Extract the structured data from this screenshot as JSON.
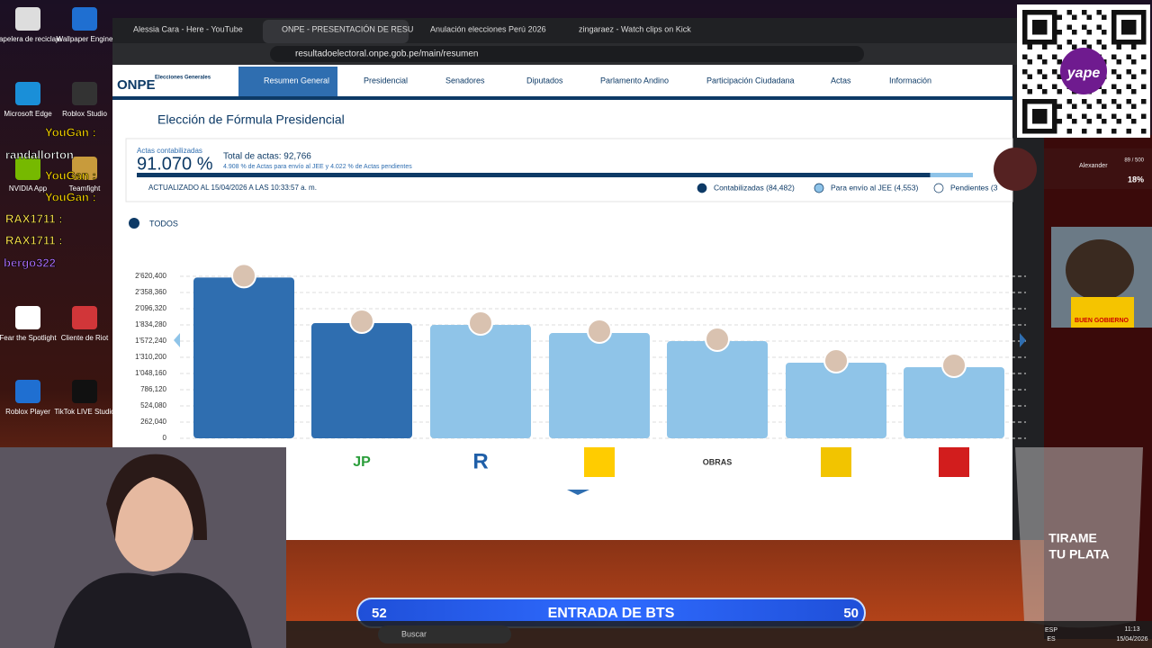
{
  "desktop_icons": [
    "Papelera de reciclaje",
    "Wallpaper Engine",
    "Microsoft Edge",
    "Roblox Studio",
    "NVIDIA App",
    "Teamfight",
    "Fear the Spotlight",
    "Cliente de Riot",
    "Roblox Player",
    "TikTok LIVE Studio"
  ],
  "chat": [
    "YouGan :",
    "randallorton",
    "YouGan :",
    "YouGan :",
    "RAX1711 :",
    "RAX1711 :",
    "bergo322"
  ],
  "tabs": [
    "Alessia Cara - Here - YouTube",
    "ONPE - PRESENTACIÓN DE RESU",
    "Anulación elecciones Perú 2026",
    "zingaraez - Watch clips on Kick"
  ],
  "url": "resultadoelectoral.onpe.gob.pe/main/resumen",
  "nav": {
    "logo": "ONPE",
    "logo_sub": "Elecciones Generales",
    "items": [
      "Resumen General",
      "Presidencial",
      "Senadores",
      "Diputados",
      "Parlamento Andino",
      "Participación Ciudadana",
      "Actas",
      "Información"
    ]
  },
  "heading": "Elección de Fórmula Presidencial",
  "summary": {
    "actas_label": "Actas contabilizadas",
    "percent": "91.070 %",
    "total": "Total de actas: 92,766",
    "detail": "4.908 % de Actas para envío al JEE y 4.022 % de Actas pendientes",
    "updated": "ACTUALIZADO AL 15/04/2026 A LAS 10:33:57 a. m.",
    "legend": [
      "Contabilizadas (84,482)",
      "Para envío al JEE (4,553)",
      "Pendientes (3"
    ],
    "progress": [
      91.07,
      4.908,
      4.022
    ],
    "progress_colors": [
      "#0d3a66",
      "#8ec3e8",
      "#ffffff"
    ]
  },
  "filter": "TODOS",
  "chart": {
    "type": "bar",
    "values": [
      2600000,
      1863000,
      1834000,
      1703000,
      1572000,
      1223000,
      1150000
    ],
    "colors": [
      "#2f6eb0",
      "#2f6eb0",
      "#8fc4e8",
      "#8fc4e8",
      "#8fc4e8",
      "#8fc4e8",
      "#8fc4e8"
    ],
    "ylim": [
      0,
      2620400
    ],
    "yticks": [
      0,
      {
        "value": 262040,
        "label": "262,040"
      },
      {
        "value": 524080,
        "label": "524,080"
      },
      {
        "value": 786120,
        "label": "786,120"
      },
      {
        "value": 1048160,
        "label": "1'048,160"
      },
      {
        "value": 1310200,
        "label": "1'310,200"
      },
      {
        "value": 1572240,
        "label": "1'572,240"
      },
      {
        "value": 1834280,
        "label": "1'834,280"
      },
      {
        "value": 2096320,
        "label": "2'096,320"
      },
      {
        "value": 2358360,
        "label": "2'358,360"
      },
      {
        "value": 2620400,
        "label": "2'620,400"
      }
    ],
    "grid": true
  },
  "party_logos": [
    "JP",
    "R",
    "OBRAS"
  ],
  "overlay": {
    "banner_left": "52",
    "banner_title": "ENTRADA DE BTS",
    "banner_right": "50",
    "glass": [
      "TIRAME",
      "TU PLATA"
    ],
    "dog_caption": "BUEN GOBIERNO",
    "qr_brand": "yape",
    "goal_name": "Alexander",
    "goal_count": "89 / 500",
    "goal_percent": "18%"
  },
  "taskbar": {
    "search": "Buscar",
    "lang": "ESP",
    "lang2": "ES",
    "time": "11:13",
    "date": "15/04/2026"
  }
}
